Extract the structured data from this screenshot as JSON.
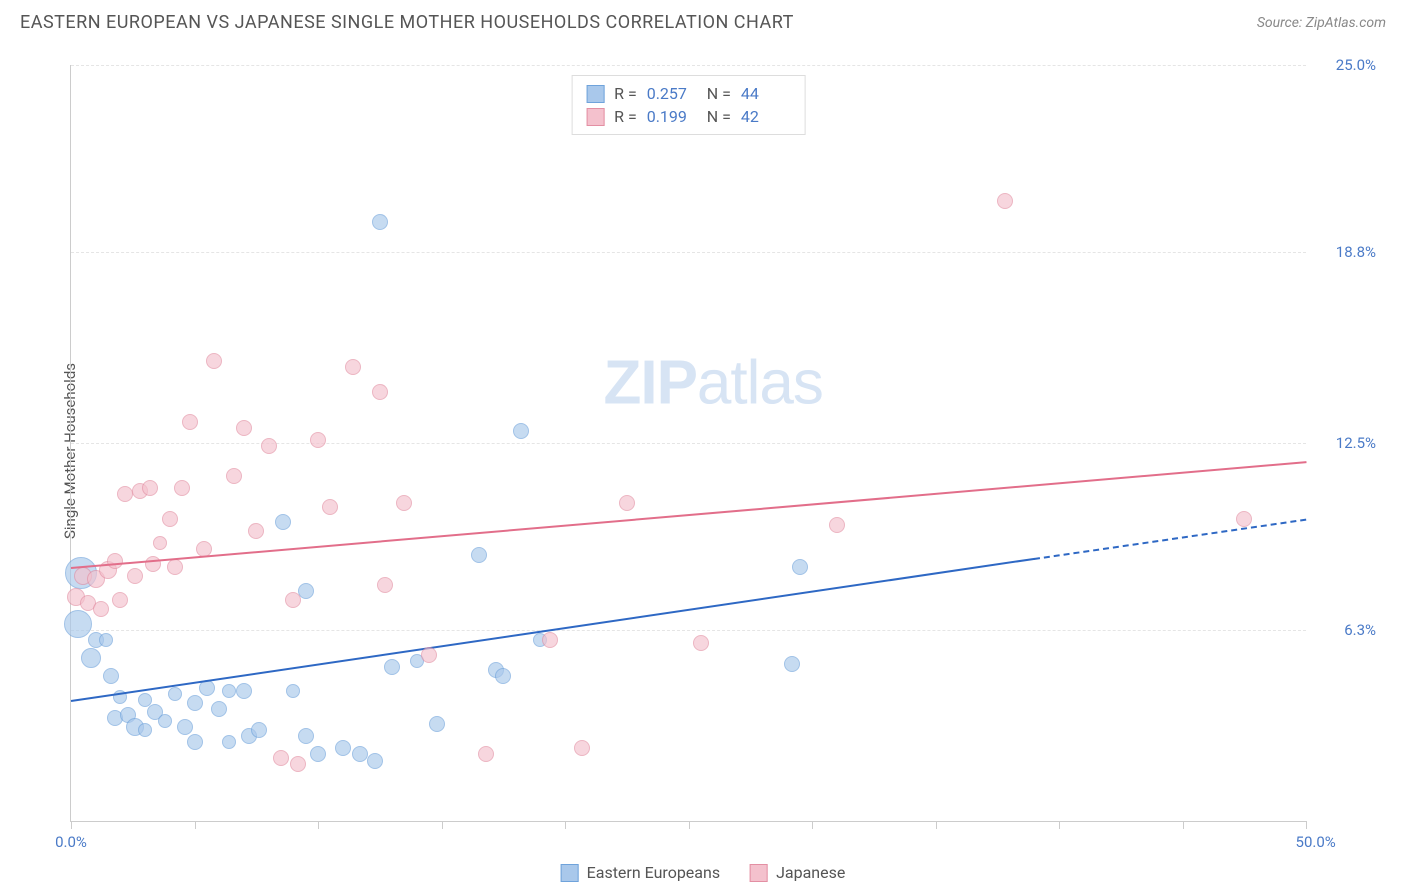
{
  "header": {
    "title": "EASTERN EUROPEAN VS JAPANESE SINGLE MOTHER HOUSEHOLDS CORRELATION CHART",
    "source": "Source: ZipAtlas.com"
  },
  "y_axis_label": "Single Mother Households",
  "watermark": {
    "zip": "ZIP",
    "atlas": "atlas"
  },
  "chart": {
    "type": "scatter",
    "xlim": [
      0,
      50
    ],
    "ylim": [
      0,
      25
    ],
    "x_ticks": [
      0,
      5,
      10,
      15,
      20,
      25,
      30,
      35,
      40,
      45,
      50
    ],
    "x_tick_labels": {
      "0": "0.0%",
      "50": "50.0%"
    },
    "y_ticks": [
      6.3,
      12.5,
      18.8,
      25.0
    ],
    "y_tick_labels": [
      "6.3%",
      "12.5%",
      "18.8%",
      "25.0%"
    ],
    "grid_color": "#e5e5e5",
    "axis_color": "#cccccc",
    "background": "#ffffff",
    "series": [
      {
        "name": "Eastern Europeans",
        "color_fill": "#a9c8eb",
        "color_stroke": "#6fa3db",
        "color_line": "#2e68c4",
        "marker_opacity": 0.65,
        "R": "0.257",
        "N": "44",
        "trend": {
          "x1": 0,
          "y1": 4.0,
          "x2": 39,
          "y2": 8.7,
          "dash_to_x": 50,
          "dash_to_y": 10.0
        },
        "points": [
          {
            "x": 0.3,
            "y": 6.5,
            "r": 14
          },
          {
            "x": 0.4,
            "y": 8.2,
            "r": 16
          },
          {
            "x": 0.8,
            "y": 5.4,
            "r": 10
          },
          {
            "x": 1.0,
            "y": 6.0,
            "r": 8
          },
          {
            "x": 1.4,
            "y": 6.0,
            "r": 7
          },
          {
            "x": 1.6,
            "y": 4.8,
            "r": 8
          },
          {
            "x": 1.8,
            "y": 3.4,
            "r": 8
          },
          {
            "x": 2.0,
            "y": 4.1,
            "r": 7
          },
          {
            "x": 2.3,
            "y": 3.5,
            "r": 8
          },
          {
            "x": 2.6,
            "y": 3.1,
            "r": 9
          },
          {
            "x": 3.0,
            "y": 4.0,
            "r": 7
          },
          {
            "x": 3.0,
            "y": 3.0,
            "r": 7
          },
          {
            "x": 3.4,
            "y": 3.6,
            "r": 8
          },
          {
            "x": 3.8,
            "y": 3.3,
            "r": 7
          },
          {
            "x": 4.2,
            "y": 4.2,
            "r": 7
          },
          {
            "x": 4.6,
            "y": 3.1,
            "r": 8
          },
          {
            "x": 5.0,
            "y": 3.9,
            "r": 8
          },
          {
            "x": 5.0,
            "y": 2.6,
            "r": 8
          },
          {
            "x": 5.5,
            "y": 4.4,
            "r": 8
          },
          {
            "x": 6.0,
            "y": 3.7,
            "r": 8
          },
          {
            "x": 6.4,
            "y": 2.6,
            "r": 7
          },
          {
            "x": 6.4,
            "y": 4.3,
            "r": 7
          },
          {
            "x": 7.0,
            "y": 4.3,
            "r": 8
          },
          {
            "x": 7.2,
            "y": 2.8,
            "r": 8
          },
          {
            "x": 7.6,
            "y": 3.0,
            "r": 8
          },
          {
            "x": 8.6,
            "y": 9.9,
            "r": 8
          },
          {
            "x": 9.0,
            "y": 4.3,
            "r": 7
          },
          {
            "x": 9.5,
            "y": 2.8,
            "r": 8
          },
          {
            "x": 9.5,
            "y": 7.6,
            "r": 8
          },
          {
            "x": 10.0,
            "y": 2.2,
            "r": 8
          },
          {
            "x": 11.0,
            "y": 2.4,
            "r": 8
          },
          {
            "x": 11.7,
            "y": 2.2,
            "r": 8
          },
          {
            "x": 12.3,
            "y": 2.0,
            "r": 8
          },
          {
            "x": 12.5,
            "y": 19.8,
            "r": 8
          },
          {
            "x": 13.0,
            "y": 5.1,
            "r": 8
          },
          {
            "x": 14.0,
            "y": 5.3,
            "r": 7
          },
          {
            "x": 14.8,
            "y": 3.2,
            "r": 8
          },
          {
            "x": 16.5,
            "y": 8.8,
            "r": 8
          },
          {
            "x": 17.2,
            "y": 5.0,
            "r": 8
          },
          {
            "x": 17.5,
            "y": 4.8,
            "r": 8
          },
          {
            "x": 18.2,
            "y": 12.9,
            "r": 8
          },
          {
            "x": 29.2,
            "y": 5.2,
            "r": 8
          },
          {
            "x": 29.5,
            "y": 8.4,
            "r": 8
          },
          {
            "x": 19.0,
            "y": 6.0,
            "r": 7
          }
        ]
      },
      {
        "name": "Japanese",
        "color_fill": "#f4c1cd",
        "color_stroke": "#e38fa3",
        "color_line": "#e26e8a",
        "marker_opacity": 0.65,
        "R": "0.199",
        "N": "42",
        "trend": {
          "x1": 0,
          "y1": 8.4,
          "x2": 50,
          "y2": 11.9
        },
        "points": [
          {
            "x": 0.2,
            "y": 7.4,
            "r": 9
          },
          {
            "x": 0.5,
            "y": 8.1,
            "r": 9
          },
          {
            "x": 0.7,
            "y": 7.2,
            "r": 8
          },
          {
            "x": 1.0,
            "y": 8.0,
            "r": 9
          },
          {
            "x": 1.2,
            "y": 7.0,
            "r": 8
          },
          {
            "x": 1.5,
            "y": 8.3,
            "r": 9
          },
          {
            "x": 1.8,
            "y": 8.6,
            "r": 8
          },
          {
            "x": 2.0,
            "y": 7.3,
            "r": 8
          },
          {
            "x": 2.2,
            "y": 10.8,
            "r": 8
          },
          {
            "x": 2.6,
            "y": 8.1,
            "r": 8
          },
          {
            "x": 2.8,
            "y": 10.9,
            "r": 8
          },
          {
            "x": 3.2,
            "y": 11.0,
            "r": 8
          },
          {
            "x": 3.3,
            "y": 8.5,
            "r": 8
          },
          {
            "x": 4.0,
            "y": 10.0,
            "r": 8
          },
          {
            "x": 4.2,
            "y": 8.4,
            "r": 8
          },
          {
            "x": 4.5,
            "y": 11.0,
            "r": 8
          },
          {
            "x": 4.8,
            "y": 13.2,
            "r": 8
          },
          {
            "x": 5.4,
            "y": 9.0,
            "r": 8
          },
          {
            "x": 5.8,
            "y": 15.2,
            "r": 8
          },
          {
            "x": 6.6,
            "y": 11.4,
            "r": 8
          },
          {
            "x": 7.0,
            "y": 13.0,
            "r": 8
          },
          {
            "x": 7.5,
            "y": 9.6,
            "r": 8
          },
          {
            "x": 8.0,
            "y": 12.4,
            "r": 8
          },
          {
            "x": 8.5,
            "y": 2.1,
            "r": 8
          },
          {
            "x": 9.0,
            "y": 7.3,
            "r": 8
          },
          {
            "x": 9.2,
            "y": 1.9,
            "r": 8
          },
          {
            "x": 10.0,
            "y": 12.6,
            "r": 8
          },
          {
            "x": 10.5,
            "y": 10.4,
            "r": 8
          },
          {
            "x": 11.4,
            "y": 15.0,
            "r": 8
          },
          {
            "x": 12.5,
            "y": 14.2,
            "r": 8
          },
          {
            "x": 12.7,
            "y": 7.8,
            "r": 8
          },
          {
            "x": 13.5,
            "y": 10.5,
            "r": 8
          },
          {
            "x": 14.5,
            "y": 5.5,
            "r": 8
          },
          {
            "x": 16.8,
            "y": 2.2,
            "r": 8
          },
          {
            "x": 19.4,
            "y": 6.0,
            "r": 8
          },
          {
            "x": 20.7,
            "y": 2.4,
            "r": 8
          },
          {
            "x": 22.5,
            "y": 10.5,
            "r": 8
          },
          {
            "x": 25.5,
            "y": 5.9,
            "r": 8
          },
          {
            "x": 31.0,
            "y": 9.8,
            "r": 8
          },
          {
            "x": 37.8,
            "y": 20.5,
            "r": 8
          },
          {
            "x": 47.5,
            "y": 10.0,
            "r": 8
          },
          {
            "x": 3.6,
            "y": 9.2,
            "r": 7
          }
        ]
      }
    ]
  },
  "legend": {
    "series1": "Eastern Europeans",
    "series2": "Japanese"
  },
  "stats_labels": {
    "R": "R =",
    "N": "N ="
  }
}
